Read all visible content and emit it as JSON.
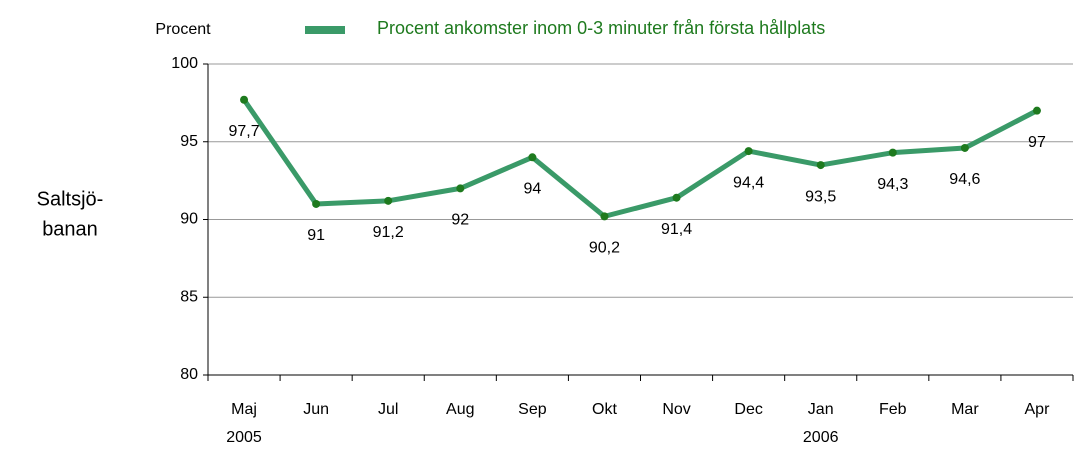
{
  "chart_data": {
    "type": "line",
    "y_axis_label": "Procent",
    "row_label": [
      "Saltsjö-",
      "banan"
    ],
    "categories": [
      "Maj",
      "Jun",
      "Jul",
      "Aug",
      "Sep",
      "Okt",
      "Nov",
      "Dec",
      "Jan",
      "Feb",
      "Mar",
      "Apr"
    ],
    "year_labels": [
      "2005",
      null,
      null,
      null,
      null,
      null,
      null,
      null,
      "2006",
      null,
      null,
      null
    ],
    "series": [
      {
        "name": "Procent ankomster inom 0-3 minuter från första hållplats",
        "color": "#3a9a68",
        "marker_color": "#1e7a1e",
        "values": [
          97.7,
          91,
          91.2,
          92,
          94,
          90.2,
          91.4,
          94.4,
          93.5,
          94.3,
          94.6,
          97
        ],
        "value_labels": [
          "97,7",
          "91",
          "91,2",
          "92",
          "94",
          "90,2",
          "91,4",
          "94,4",
          "93,5",
          "94,3",
          "94,6",
          "97"
        ]
      }
    ],
    "ylim": [
      80,
      100
    ],
    "yticks": [
      80,
      85,
      90,
      95,
      100
    ],
    "grid": true,
    "legend": "top"
  }
}
